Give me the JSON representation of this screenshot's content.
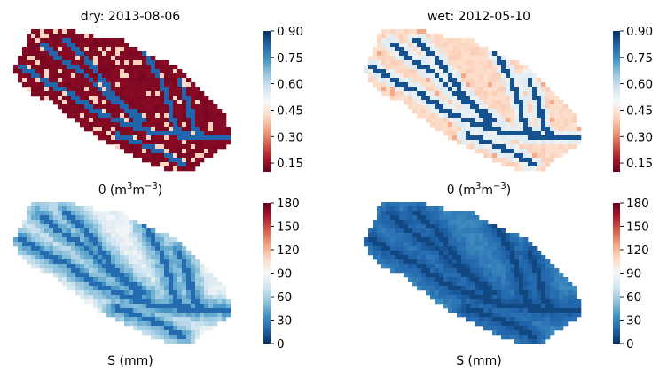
{
  "colors": {
    "rdbu": [
      "#67001f",
      "#b2182b",
      "#d6604d",
      "#f4a582",
      "#fddbc7",
      "#f7f7f7",
      "#d1e5f0",
      "#92c5de",
      "#4393c3",
      "#2166ac",
      "#053061"
    ]
  },
  "chart_data": [
    {
      "type": "heatmap",
      "panel": "theta_dry",
      "title": "dry: 2013-08-06",
      "xlabel": "θ (m³m⁻³)",
      "xlabel_parts": {
        "sym": "θ",
        "open": " (m",
        "sup1": "3",
        "mid": "m",
        "sup2": "−3",
        "close": ")"
      },
      "colorbar": {
        "min": 0.1,
        "max": 0.9,
        "ticks": [
          0.9,
          0.75,
          0.6,
          0.45,
          0.3,
          0.15
        ],
        "tick_labels": [
          "0.90",
          "0.75",
          "0.60",
          "0.45",
          "0.30",
          "0.15"
        ],
        "cmap": "RdBu"
      },
      "field_summary": {
        "typical": 0.12,
        "patches": 0.42,
        "channels": 0.82
      }
    },
    {
      "type": "heatmap",
      "panel": "theta_wet",
      "title": "wet: 2012-05-10",
      "xlabel": "θ (m³m⁻³)",
      "xlabel_parts": {
        "sym": "θ",
        "open": " (m",
        "sup1": "3",
        "mid": "m",
        "sup2": "−3",
        "close": ")"
      },
      "colorbar": {
        "min": 0.1,
        "max": 0.9,
        "ticks": [
          0.9,
          0.75,
          0.6,
          0.45,
          0.3,
          0.15
        ],
        "tick_labels": [
          "0.90",
          "0.75",
          "0.60",
          "0.45",
          "0.30",
          "0.15"
        ],
        "cmap": "RdBu"
      },
      "field_summary": {
        "typical": 0.42,
        "patches": 0.33,
        "channels": 0.85
      }
    },
    {
      "type": "heatmap",
      "panel": "storage_dry",
      "title": "",
      "xlabel": "S (mm)",
      "colorbar": {
        "min": 0,
        "max": 180,
        "ticks": [
          180,
          150,
          120,
          90,
          60,
          30,
          0
        ],
        "tick_labels": [
          "180",
          "150",
          "120",
          "90",
          "60",
          "30",
          "0"
        ],
        "cmap": "RdBu_r"
      },
      "field_summary": {
        "typical": 82,
        "channels": 20
      }
    },
    {
      "type": "heatmap",
      "panel": "storage_wet",
      "title": "",
      "xlabel": "S (mm)",
      "colorbar": {
        "min": 0,
        "max": 180,
        "ticks": [
          180,
          150,
          120,
          90,
          60,
          30,
          0
        ],
        "tick_labels": [
          "180",
          "150",
          "120",
          "90",
          "60",
          "30",
          "0"
        ],
        "cmap": "RdBu_r"
      },
      "field_summary": {
        "typical": 30,
        "channels": 8
      }
    }
  ]
}
